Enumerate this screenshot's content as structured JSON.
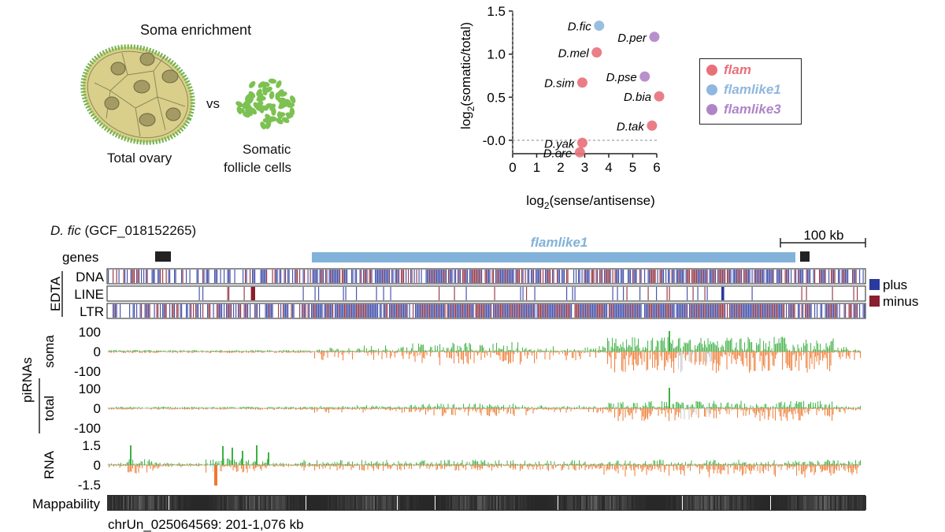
{
  "top_left": {
    "title": "Soma enrichment",
    "vs": "vs",
    "total_label": "Total ovary",
    "somatic_label_line1": "Somatic",
    "somatic_label_line2": "follicle cells"
  },
  "colors": {
    "flam": "#e8707a",
    "flamlike1": "#8fb7df",
    "flamlike3": "#b084c8",
    "plus": "#2a3aa0",
    "minus": "#8a1f2e",
    "soma_sense": "#3cb043",
    "soma_anti": "#f07830",
    "unique_gray": "#c8c8c8",
    "flamlike1_bar": "#82b2d9",
    "ovary_fill": "#d9cf8a",
    "ovary_border": "#6fb24c",
    "nucleus": "#a49a63",
    "follicle": "#7cc152"
  },
  "chart_data": {
    "type": "scatter",
    "title": "",
    "xlabel": "log2(sense/antisense)",
    "ylabel": "log2(somatic/total)",
    "xlim": [
      0,
      6.3
    ],
    "ylim": [
      -0.2,
      1.5
    ],
    "xticks": [
      "0",
      "1",
      "2",
      "3",
      "4",
      "5",
      "6"
    ],
    "yticks": [
      "-0.0",
      "0.5",
      "1.0",
      "1.5"
    ],
    "points": [
      {
        "label": "D.fic",
        "x": 3.6,
        "y": 1.33,
        "group": "flamlike1"
      },
      {
        "label": "D.per",
        "x": 5.9,
        "y": 1.2,
        "group": "flamlike3"
      },
      {
        "label": "D.mel",
        "x": 3.5,
        "y": 1.02,
        "group": "flam"
      },
      {
        "label": "D.pse",
        "x": 5.5,
        "y": 0.74,
        "group": "flamlike3"
      },
      {
        "label": "D.sim",
        "x": 2.9,
        "y": 0.67,
        "group": "flam"
      },
      {
        "label": "D.bia",
        "x": 6.1,
        "y": 0.51,
        "group": "flam"
      },
      {
        "label": "D.tak",
        "x": 5.8,
        "y": 0.17,
        "group": "flam"
      },
      {
        "label": "D.yak",
        "x": 2.9,
        "y": -0.03,
        "group": "flam"
      },
      {
        "label": "D.ere",
        "x": 2.8,
        "y": -0.14,
        "group": "flam"
      }
    ],
    "legend": [
      {
        "name": "flam",
        "group": "flam"
      },
      {
        "name": "flamlike1",
        "group": "flamlike1"
      },
      {
        "name": "flamlike3",
        "group": "flamlike3"
      }
    ],
    "legend_position": "right"
  },
  "genome": {
    "species": "D. fic",
    "accession": "(GCF_018152265)",
    "scale_label": "100 kb",
    "genes_label": "genes",
    "flamlike_label": "flamlike1",
    "edta_label": "EDTA",
    "edta_tracks": [
      "DNA",
      "LINE",
      "LTR"
    ],
    "strand_legend": [
      {
        "name": "plus",
        "color": "#2a3aa0"
      },
      {
        "name": "minus",
        "color": "#8a1f2e"
      }
    ],
    "pirna_label": "piRNAs",
    "soma_label": "soma",
    "total_label": "total",
    "pirna_ticks": [
      "100",
      "0",
      "-100"
    ],
    "rna_label": "RNA",
    "rna_ticks": [
      "1.5",
      "0",
      "-1.5"
    ],
    "mappability_label": "Mappability",
    "coords": "chrUn_025064569: 201-1,076 kb"
  }
}
